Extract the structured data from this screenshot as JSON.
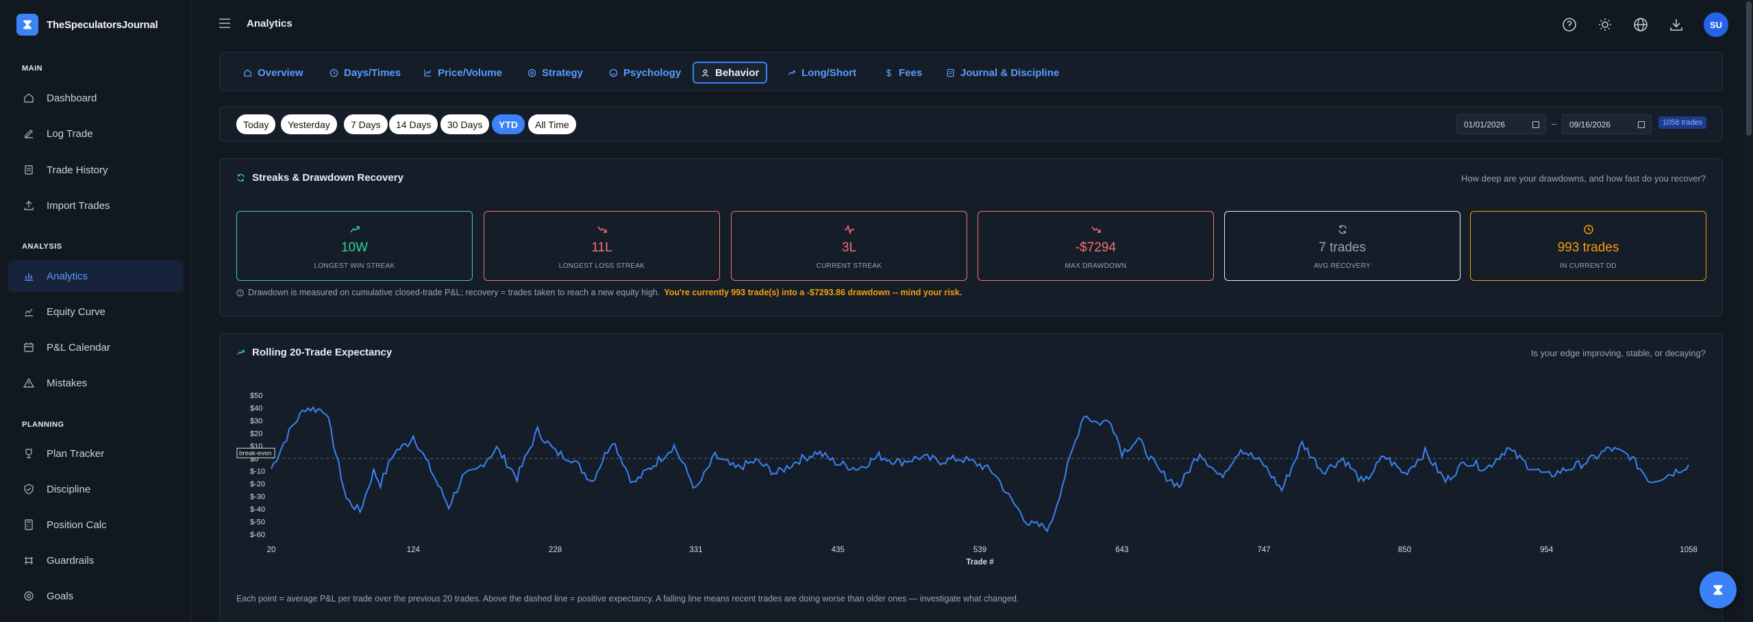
{
  "app": {
    "name": "TheSpeculatorsJournal"
  },
  "sidebar": {
    "sections": [
      {
        "label": "MAIN",
        "items": [
          "Dashboard",
          "Log Trade",
          "Trade History",
          "Import Trades"
        ]
      },
      {
        "label": "ANALYSIS",
        "items": [
          "Analytics",
          "Equity Curve",
          "P&L Calendar",
          "Mistakes"
        ]
      },
      {
        "label": "PLANNING",
        "items": [
          "Plan Tracker",
          "Discipline",
          "Position Calc",
          "Guardrails",
          "Goals"
        ]
      }
    ],
    "active": "Analytics"
  },
  "header": {
    "title": "Analytics",
    "avatar": "SU"
  },
  "tabs": [
    "Overview",
    "Days/Times",
    "Price/Volume",
    "Strategy",
    "Psychology",
    "Behavior",
    "Long/Short",
    "Fees",
    "Journal & Discipline"
  ],
  "active_tab": "Behavior",
  "filters": {
    "ranges": [
      "Today",
      "Yesterday",
      "7 Days",
      "14 Days",
      "30 Days",
      "YTD",
      "All Time"
    ],
    "active_range": "YTD",
    "date_from": "01/01/2026",
    "date_sep": "–",
    "date_to": "09/16/2026",
    "trade_count": "1058 trades"
  },
  "streaks": {
    "title": "Streaks & Drawdown Recovery",
    "question": "How deep are your drawdowns, and how fast do you recover?",
    "cards": [
      {
        "value": "10W",
        "label": "LONGEST WIN STREAK",
        "color": "#34d399",
        "icon": "trend-up-icon"
      },
      {
        "value": "11L",
        "label": "LONGEST LOSS STREAK",
        "color": "#f87171",
        "icon": "trend-down-icon"
      },
      {
        "value": "3L",
        "label": "CURRENT STREAK",
        "color": "#f87171",
        "icon": "pulse-icon"
      },
      {
        "value": "-$7294",
        "label": "MAX DRAWDOWN",
        "color": "#f87171",
        "icon": "trend-down-icon"
      },
      {
        "value": "7 trades",
        "label": "AVG RECOVERY",
        "color": "#9aa5b1",
        "icon": "refresh-icon"
      },
      {
        "value": "993 trades",
        "label": "IN CURRENT DD",
        "color": "#f59e0b",
        "icon": "clock-icon"
      }
    ],
    "note": "Drawdown is measured on cumulative closed-trade P&L; recovery = trades taken to reach a new equity high.",
    "warning": "You're currently 993 trade(s) into a -$7293.86 drawdown -- mind your risk."
  },
  "rolling": {
    "title": "Rolling 20-Trade Expectancy",
    "question": "Is your edge improving, stable, or decaying?",
    "footnote": "Each point = average P&L per trade over the previous 20 trades. Above the dashed line = positive expectancy. A falling line means recent trades are doing worse than older ones — investigate what changed."
  },
  "chart_data": {
    "type": "line",
    "xlabel": "Trade #",
    "ylabel": "",
    "x_ticks": [
      20,
      124,
      228,
      331,
      435,
      539,
      643,
      747,
      850,
      954,
      1058
    ],
    "y_ticks": [
      "$50",
      "$40",
      "$30",
      "$20",
      "$10",
      "$0",
      "$-10",
      "$-20",
      "$-30",
      "$-40",
      "$-50",
      "$-60"
    ],
    "ylim": [
      -60,
      50
    ],
    "xlim": [
      20,
      1058
    ],
    "annotation": "break-even",
    "color": "#3b82f6",
    "series": [
      {
        "x": [
          20,
          35,
          45,
          60,
          75,
          85,
          95,
          100,
          110,
          120,
          124,
          135,
          150,
          160,
          170,
          185,
          200,
          215,
          228,
          240,
          255,
          270,
          285,
          300,
          315,
          331,
          345,
          360,
          375,
          390,
          405,
          420,
          435,
          450,
          465,
          480,
          495,
          510,
          525,
          539,
          550,
          560,
          575,
          590,
          605,
          615,
          625,
          635,
          643,
          655,
          670,
          685,
          700,
          715,
          730,
          747,
          760,
          775,
          790,
          805,
          820,
          835,
          850,
          865,
          880,
          895,
          910,
          925,
          940,
          954,
          970,
          985,
          1000,
          1015,
          1030,
          1045,
          1058
        ],
        "y": [
          -8,
          25,
          40,
          38,
          -32,
          -42,
          -10,
          -20,
          5,
          12,
          18,
          -5,
          -38,
          -15,
          -10,
          8,
          -15,
          22,
          5,
          0,
          -18,
          15,
          -20,
          -5,
          10,
          -25,
          2,
          -8,
          -2,
          -12,
          -2,
          5,
          -4,
          -8,
          2,
          -3,
          1,
          -2,
          0,
          -5,
          -12,
          -30,
          -52,
          -55,
          0,
          35,
          28,
          30,
          5,
          15,
          -10,
          -22,
          5,
          -15,
          8,
          -5,
          -25,
          12,
          -10,
          0,
          -20,
          2,
          -12,
          5,
          -18,
          -2,
          -8,
          8,
          -5,
          -14,
          -8,
          -2,
          8,
          2,
          -18,
          -12,
          -5
        ]
      }
    ]
  }
}
